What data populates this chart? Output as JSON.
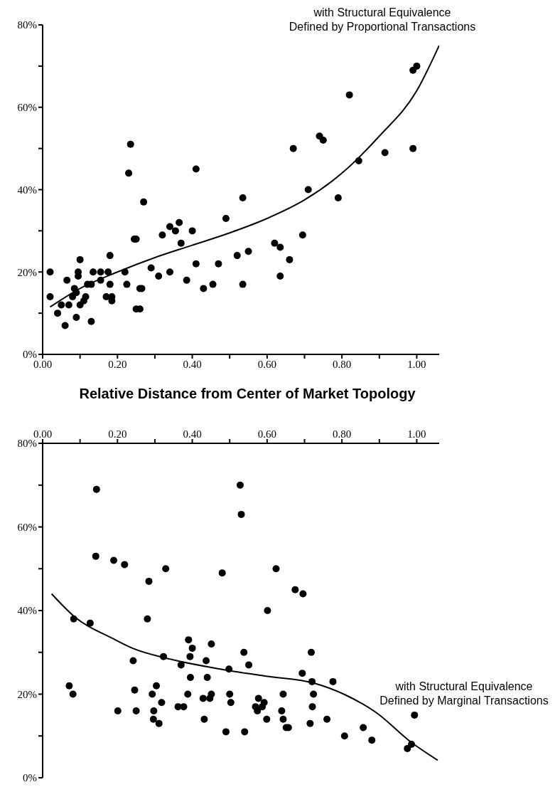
{
  "chart_data": [
    {
      "type": "scatter",
      "xlabel": "Relative Distance from Center of Market Topology",
      "annotations": [
        "with Structural Equivalence\nDefined by Proportional Transactions"
      ],
      "marker": "circle",
      "xlim": [
        0,
        1.06
      ],
      "xticks": [
        {
          "value": 0,
          "label": "0.00"
        },
        {
          "value": 0.1,
          "label": null
        },
        {
          "value": 0.2,
          "label": "0.20"
        },
        {
          "value": 0.3,
          "label": null
        },
        {
          "value": 0.4,
          "label": "0.40"
        },
        {
          "value": 0.5,
          "label": null
        },
        {
          "value": 0.6,
          "label": "0.60"
        },
        {
          "value": 0.7,
          "label": null
        },
        {
          "value": 0.8,
          "label": "0.80"
        },
        {
          "value": 0.9,
          "label": null
        },
        {
          "value": 1,
          "label": "1.00"
        }
      ],
      "ylim": [
        0,
        80
      ],
      "yticks": [
        {
          "value": 0,
          "label": "0%"
        },
        {
          "value": 10,
          "label": null
        },
        {
          "value": 20,
          "label": "20%"
        },
        {
          "value": 30,
          "label": null
        },
        {
          "value": 40,
          "label": "40%"
        },
        {
          "value": 50,
          "label": null
        },
        {
          "value": 60,
          "label": "60%"
        },
        {
          "value": 70,
          "label": null
        },
        {
          "value": 80,
          "label": "80%"
        }
      ],
      "series": [
        {
          "type": "scatter",
          "color": "#000000",
          "x": [
            0.02,
            0.02,
            0.04,
            0.05,
            0.06,
            0.065,
            0.07,
            0.08,
            0.085,
            0.09,
            0.09,
            0.095,
            0.095,
            0.1,
            0.1,
            0.11,
            0.115,
            0.12,
            0.13,
            0.13,
            0.135,
            0.155,
            0.155,
            0.17,
            0.175,
            0.18,
            0.18,
            0.185,
            0.185,
            0.22,
            0.225,
            0.23,
            0.235,
            0.245,
            0.25,
            0.25,
            0.26,
            0.26,
            0.265,
            0.27,
            0.29,
            0.31,
            0.32,
            0.34,
            0.34,
            0.355,
            0.365,
            0.37,
            0.385,
            0.4,
            0.41,
            0.41,
            0.43,
            0.455,
            0.47,
            0.49,
            0.52,
            0.535,
            0.535,
            0.55,
            0.62,
            0.635,
            0.635,
            0.66,
            0.67,
            0.695,
            0.71,
            0.74,
            0.75,
            0.79,
            0.82,
            0.845,
            0.915,
            0.99,
            1.0,
            0.99
          ],
          "values": [
            20,
            14,
            10,
            12,
            7,
            18,
            12,
            14,
            16,
            15,
            9,
            19,
            20,
            12,
            23,
            13,
            14,
            17,
            17,
            8,
            20,
            20,
            18,
            14,
            20,
            24,
            17,
            14,
            13,
            20,
            17,
            44,
            51,
            28,
            28,
            11,
            11,
            16,
            16,
            37,
            21,
            19,
            29,
            31,
            20,
            30,
            32,
            27,
            18,
            30,
            22,
            45,
            16,
            17,
            22,
            33,
            24,
            38,
            17,
            25,
            27,
            26,
            19,
            23,
            50,
            29,
            40,
            53,
            52,
            38,
            63,
            47,
            49,
            69,
            70,
            50
          ]
        },
        {
          "type": "line",
          "color": "#000000",
          "marker": "none",
          "x": [
            0.02,
            0.1,
            0.2,
            0.3,
            0.4,
            0.5,
            0.6,
            0.7,
            0.8,
            0.9,
            1.0,
            1.06
          ],
          "values": [
            11.5,
            16,
            20,
            23.5,
            26.5,
            29.5,
            33,
            37.5,
            44,
            53,
            64,
            75
          ]
        }
      ]
    },
    {
      "type": "scatter",
      "annotations": [
        "with Structural Equivalence\nDefined by Marginal Transactions"
      ],
      "marker": "circle",
      "xlim": [
        0,
        1.06
      ],
      "xticks": [
        {
          "value": 0,
          "label": "0.00"
        },
        {
          "value": 0.1,
          "label": null
        },
        {
          "value": 0.2,
          "label": "0.20"
        },
        {
          "value": 0.3,
          "label": null
        },
        {
          "value": 0.4,
          "label": "0.40"
        },
        {
          "value": 0.5,
          "label": null
        },
        {
          "value": 0.6,
          "label": "0.60"
        },
        {
          "value": 0.7,
          "label": null
        },
        {
          "value": 0.8,
          "label": "0.80"
        },
        {
          "value": 0.9,
          "label": null
        },
        {
          "value": 1,
          "label": "1.00"
        }
      ],
      "ylim": [
        0,
        80
      ],
      "yticks": [
        {
          "value": 0,
          "label": "0%"
        },
        {
          "value": 10,
          "label": null
        },
        {
          "value": 20,
          "label": "20%"
        },
        {
          "value": 30,
          "label": null
        },
        {
          "value": 40,
          "label": "40%"
        },
        {
          "value": 50,
          "label": null
        },
        {
          "value": 60,
          "label": "60%"
        },
        {
          "value": 70,
          "label": null
        },
        {
          "value": 80,
          "label": "80%"
        }
      ],
      "series": [
        {
          "type": "scatter",
          "color": "#000000",
          "x": [
            0.144,
            0.142,
            0.19,
            0.219,
            0.329,
            0.284,
            0.48,
            0.083,
            0.127,
            0.28,
            0.071,
            0.081,
            0.242,
            0.246,
            0.201,
            0.25,
            0.293,
            0.304,
            0.318,
            0.297,
            0.296,
            0.311,
            0.323,
            0.37,
            0.362,
            0.377,
            0.39,
            0.4,
            0.394,
            0.395,
            0.388,
            0.437,
            0.44,
            0.451,
            0.429,
            0.447,
            0.451,
            0.432,
            0.49,
            0.498,
            0.5,
            0.503,
            0.528,
            0.531,
            0.624,
            0.675,
            0.696,
            0.601,
            0.538,
            0.551,
            0.718,
            0.694,
            0.72,
            0.776,
            0.643,
            0.724,
            0.577,
            0.592,
            0.569,
            0.587,
            0.574,
            0.639,
            0.721,
            0.599,
            0.643,
            0.76,
            0.651,
            0.657,
            0.715,
            0.857,
            0.54,
            0.807,
            0.88,
            0.994,
            0.975,
            0.986
          ],
          "values": [
            69,
            53,
            52,
            51,
            50,
            47,
            49,
            38,
            37,
            38,
            22,
            20,
            28,
            21,
            16,
            16,
            20,
            22,
            18,
            16,
            14,
            13,
            29,
            27,
            17,
            17,
            33,
            31,
            29,
            24,
            20,
            28,
            24,
            32,
            19,
            19,
            20,
            14,
            11,
            26,
            20,
            18,
            70,
            63,
            50,
            45,
            44,
            40,
            30,
            27,
            30,
            25,
            23,
            23,
            20,
            20,
            19,
            18,
            17,
            17,
            16,
            16,
            17,
            14,
            14,
            14,
            12,
            12,
            13,
            12,
            11,
            10,
            9,
            15,
            7,
            8
          ]
        },
        {
          "type": "line",
          "color": "#000000",
          "marker": "none",
          "x": [
            0.024,
            0.083,
            0.19,
            0.24,
            0.34,
            0.469,
            0.597,
            0.727,
            0.805,
            0.89,
            0.988,
            1.056
          ],
          "values": [
            44,
            38.7,
            33.2,
            31,
            28.4,
            26.1,
            24.3,
            22.6,
            20,
            15.7,
            8.3,
            4.2
          ]
        }
      ]
    }
  ]
}
